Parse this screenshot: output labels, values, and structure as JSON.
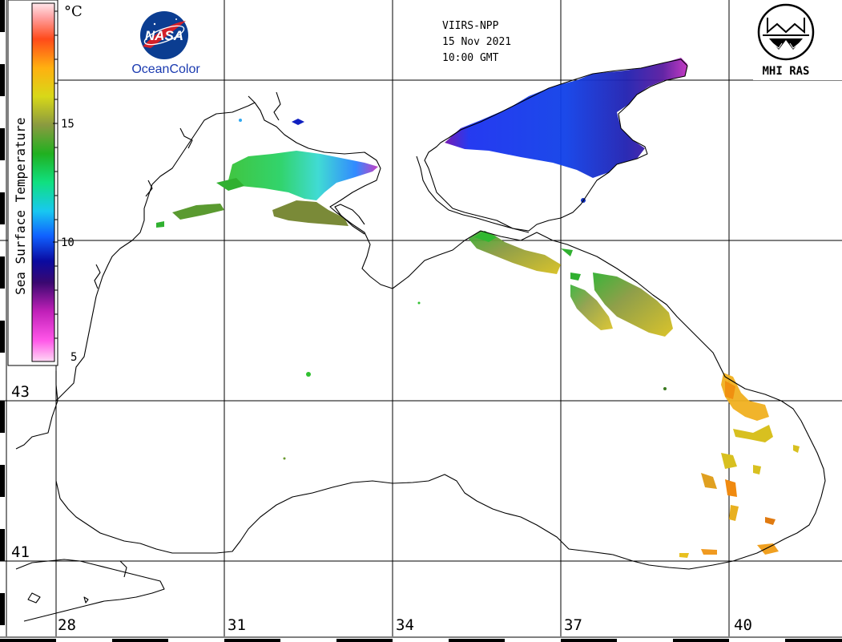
{
  "header": {
    "satellite": "VIIRS-NPP",
    "date": "15 Nov 2021",
    "time": "10:00 GMT"
  },
  "logos": {
    "nasa_wordmark": "NASA",
    "oceancolor": "OceanColor",
    "mhi_label": "MHI RAS"
  },
  "colorbar": {
    "title": "Sea Surface Temperature",
    "unit": "°C",
    "ticks": [
      "15",
      "10",
      "5"
    ]
  },
  "longitude_labels": [
    "28",
    "31",
    "34",
    "37",
    "40"
  ],
  "latitude_labels": [
    "43",
    "41"
  ],
  "colors": {
    "grid": "#000000",
    "coast": "#000000",
    "background": "#ffffff"
  }
}
